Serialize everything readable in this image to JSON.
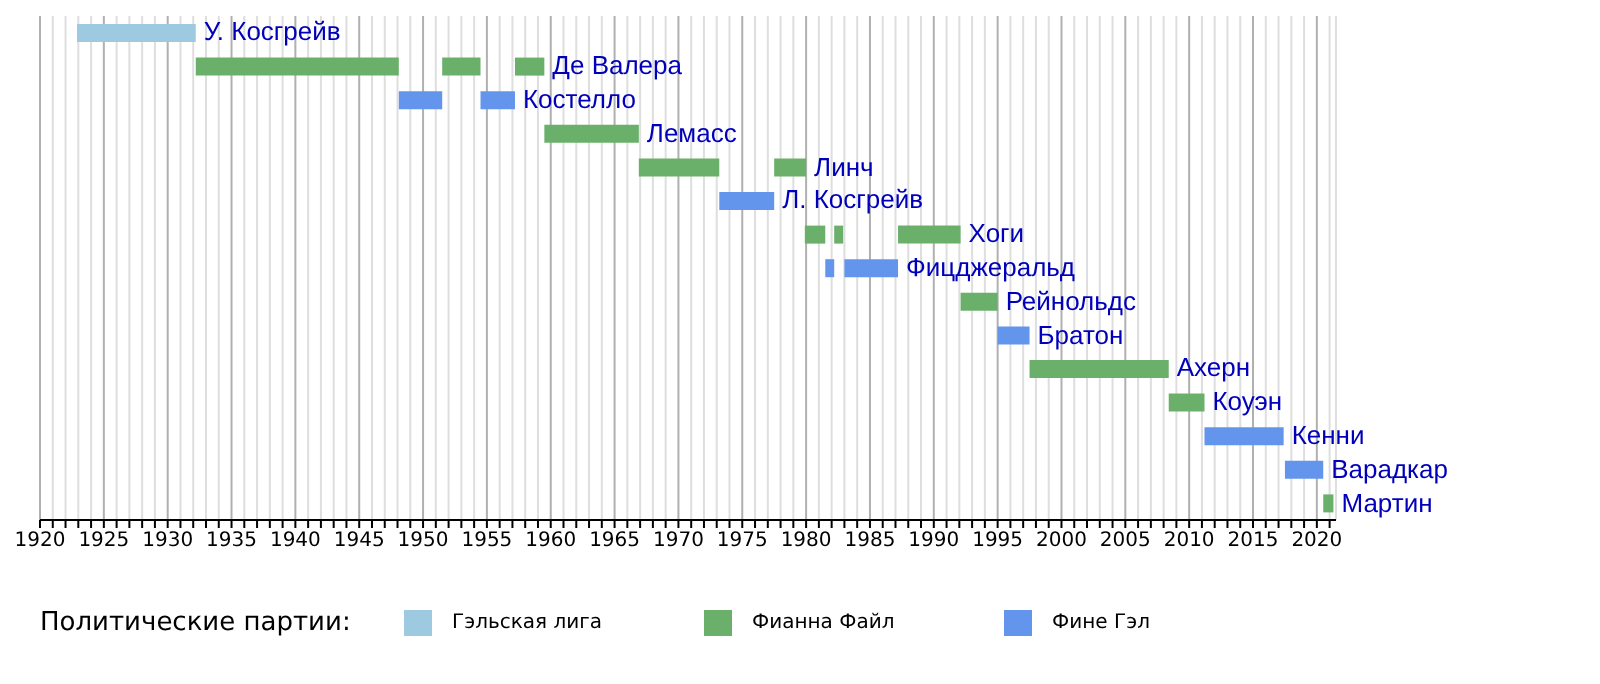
{
  "chart_data": {
    "type": "bar",
    "orientation": "horizontal",
    "legend_title": "Политические партии:",
    "legend": "bottom",
    "grid": "x",
    "categories": [
      "У. Косгрейв",
      "Де Валера",
      "Костелло",
      "Лемасс",
      "Линч",
      "Л. Косгрейв",
      "Хоги",
      "Фицджеральд",
      "Рейнольдс",
      "Братон",
      "Ахерн",
      "Коуэн",
      "Кенни",
      "Варадкар",
      "Мартин"
    ],
    "xlim": [
      1920,
      2021.5
    ],
    "xticks": [
      1920,
      {
        "value": 1921,
        "label": null
      },
      {
        "value": 1922,
        "label": null
      },
      {
        "value": 1923,
        "label": null
      },
      {
        "value": 1924,
        "label": null
      },
      1925,
      {
        "value": 1926,
        "label": null
      },
      {
        "value": 1927,
        "label": null
      },
      {
        "value": 1928,
        "label": null
      },
      {
        "value": 1929,
        "label": null
      },
      1930,
      {
        "value": 1931,
        "label": null
      },
      {
        "value": 1932,
        "label": null
      },
      {
        "value": 1933,
        "label": null
      },
      {
        "value": 1934,
        "label": null
      },
      1935,
      {
        "value": 1936,
        "label": null
      },
      {
        "value": 1937,
        "label": null
      },
      {
        "value": 1938,
        "label": null
      },
      {
        "value": 1939,
        "label": null
      },
      1940,
      {
        "value": 1941,
        "label": null
      },
      {
        "value": 1942,
        "label": null
      },
      {
        "value": 1943,
        "label": null
      },
      {
        "value": 1944,
        "label": null
      },
      1945,
      {
        "value": 1946,
        "label": null
      },
      {
        "value": 1947,
        "label": null
      },
      {
        "value": 1948,
        "label": null
      },
      {
        "value": 1949,
        "label": null
      },
      1950,
      {
        "value": 1951,
        "label": null
      },
      {
        "value": 1952,
        "label": null
      },
      {
        "value": 1953,
        "label": null
      },
      {
        "value": 1954,
        "label": null
      },
      1955,
      {
        "value": 1956,
        "label": null
      },
      {
        "value": 1957,
        "label": null
      },
      {
        "value": 1958,
        "label": null
      },
      {
        "value": 1959,
        "label": null
      },
      1960,
      {
        "value": 1961,
        "label": null
      },
      {
        "value": 1962,
        "label": null
      },
      {
        "value": 1963,
        "label": null
      },
      {
        "value": 1964,
        "label": null
      },
      1965,
      {
        "value": 1966,
        "label": null
      },
      {
        "value": 1967,
        "label": null
      },
      {
        "value": 1968,
        "label": null
      },
      {
        "value": 1969,
        "label": null
      },
      1970,
      {
        "value": 1971,
        "label": null
      },
      {
        "value": 1972,
        "label": null
      },
      {
        "value": 1973,
        "label": null
      },
      {
        "value": 1974,
        "label": null
      },
      1975,
      {
        "value": 1976,
        "label": null
      },
      {
        "value": 1977,
        "label": null
      },
      {
        "value": 1978,
        "label": null
      },
      {
        "value": 1979,
        "label": null
      },
      1980,
      {
        "value": 1981,
        "label": null
      },
      {
        "value": 1982,
        "label": null
      },
      {
        "value": 1983,
        "label": null
      },
      {
        "value": 1984,
        "label": null
      },
      1985,
      {
        "value": 1986,
        "label": null
      },
      {
        "value": 1987,
        "label": null
      },
      {
        "value": 1988,
        "label": null
      },
      {
        "value": 1989,
        "label": null
      },
      1990,
      {
        "value": 1991,
        "label": null
      },
      {
        "value": 1992,
        "label": null
      },
      {
        "value": 1993,
        "label": null
      },
      {
        "value": 1994,
        "label": null
      },
      1995,
      {
        "value": 1996,
        "label": null
      },
      {
        "value": 1997,
        "label": null
      },
      {
        "value": 1998,
        "label": null
      },
      {
        "value": 1999,
        "label": null
      },
      2000,
      {
        "value": 2001,
        "label": null
      },
      {
        "value": 2002,
        "label": null
      },
      {
        "value": 2003,
        "label": null
      },
      {
        "value": 2004,
        "label": null
      },
      2005,
      {
        "value": 2006,
        "label": null
      },
      {
        "value": 2007,
        "label": null
      },
      {
        "value": 2008,
        "label": null
      },
      {
        "value": 2009,
        "label": null
      },
      2010,
      {
        "value": 2011,
        "label": null
      },
      {
        "value": 2012,
        "label": null
      },
      {
        "value": 2013,
        "label": null
      },
      {
        "value": 2014,
        "label": null
      },
      2015,
      {
        "value": 2016,
        "label": null
      },
      {
        "value": 2017,
        "label": null
      },
      {
        "value": 2018,
        "label": null
      },
      {
        "value": 2019,
        "label": null
      },
      2020,
      {
        "value": 2021,
        "label": null
      }
    ],
    "series": [
      {
        "name": "Гэльская лига",
        "color": "#9ecae1",
        "base": [
          1922.9,
          null,
          null,
          null,
          null,
          null,
          null,
          null,
          null,
          null,
          null,
          null,
          null,
          null,
          null
        ],
        "values": [
          9.3,
          null,
          null,
          null,
          null,
          null,
          null,
          null,
          null,
          null,
          null,
          null,
          null,
          null,
          null
        ]
      },
      {
        "name": "Фианна Файл",
        "color": "#6aaf6a",
        "base": [
          null,
          1932.2,
          null,
          1959.5,
          1966.9,
          null,
          1979.9,
          null,
          1992.1,
          null,
          1997.5,
          2008.4,
          null,
          null,
          2020.5
        ],
        "values": [
          null,
          15.9,
          null,
          7.4,
          6.3,
          null,
          1.6,
          null,
          2.9,
          null,
          10.9,
          2.8,
          null,
          null,
          0.8
        ]
      },
      {
        "color": "#6aaf6a",
        "base": [
          null,
          1951.5,
          null,
          null,
          1977.5,
          null,
          1982.2,
          null,
          null,
          null,
          null,
          null,
          null,
          null,
          null
        ],
        "values": [
          null,
          3.0,
          null,
          null,
          2.5,
          null,
          0.7,
          null,
          null,
          null,
          null,
          null,
          null,
          null,
          null
        ]
      },
      {
        "color": "#6aaf6a",
        "base": [
          null,
          1957.2,
          null,
          null,
          null,
          null,
          1987.2,
          null,
          null,
          null,
          null,
          null,
          null,
          null,
          null
        ],
        "values": [
          null,
          2.3,
          null,
          null,
          null,
          null,
          4.9,
          null,
          null,
          null,
          null,
          null,
          null,
          null,
          null
        ]
      },
      {
        "name": "Фине Гэл",
        "color": "#6495ed",
        "base": [
          null,
          null,
          1948.1,
          null,
          null,
          1973.2,
          null,
          1981.5,
          null,
          1995.0,
          null,
          null,
          2011.2,
          2017.5,
          null
        ],
        "values": [
          null,
          null,
          3.4,
          null,
          null,
          4.3,
          null,
          0.7,
          null,
          2.5,
          null,
          null,
          6.2,
          3.0,
          null
        ]
      },
      {
        "color": "#6495ed",
        "base": [
          null,
          null,
          1954.5,
          null,
          null,
          null,
          null,
          1983.0,
          null,
          null,
          null,
          null,
          null,
          null,
          null
        ],
        "values": [
          null,
          null,
          2.7,
          null,
          null,
          null,
          null,
          4.2,
          null,
          null,
          null,
          null,
          null,
          null,
          null
        ]
      }
    ]
  }
}
